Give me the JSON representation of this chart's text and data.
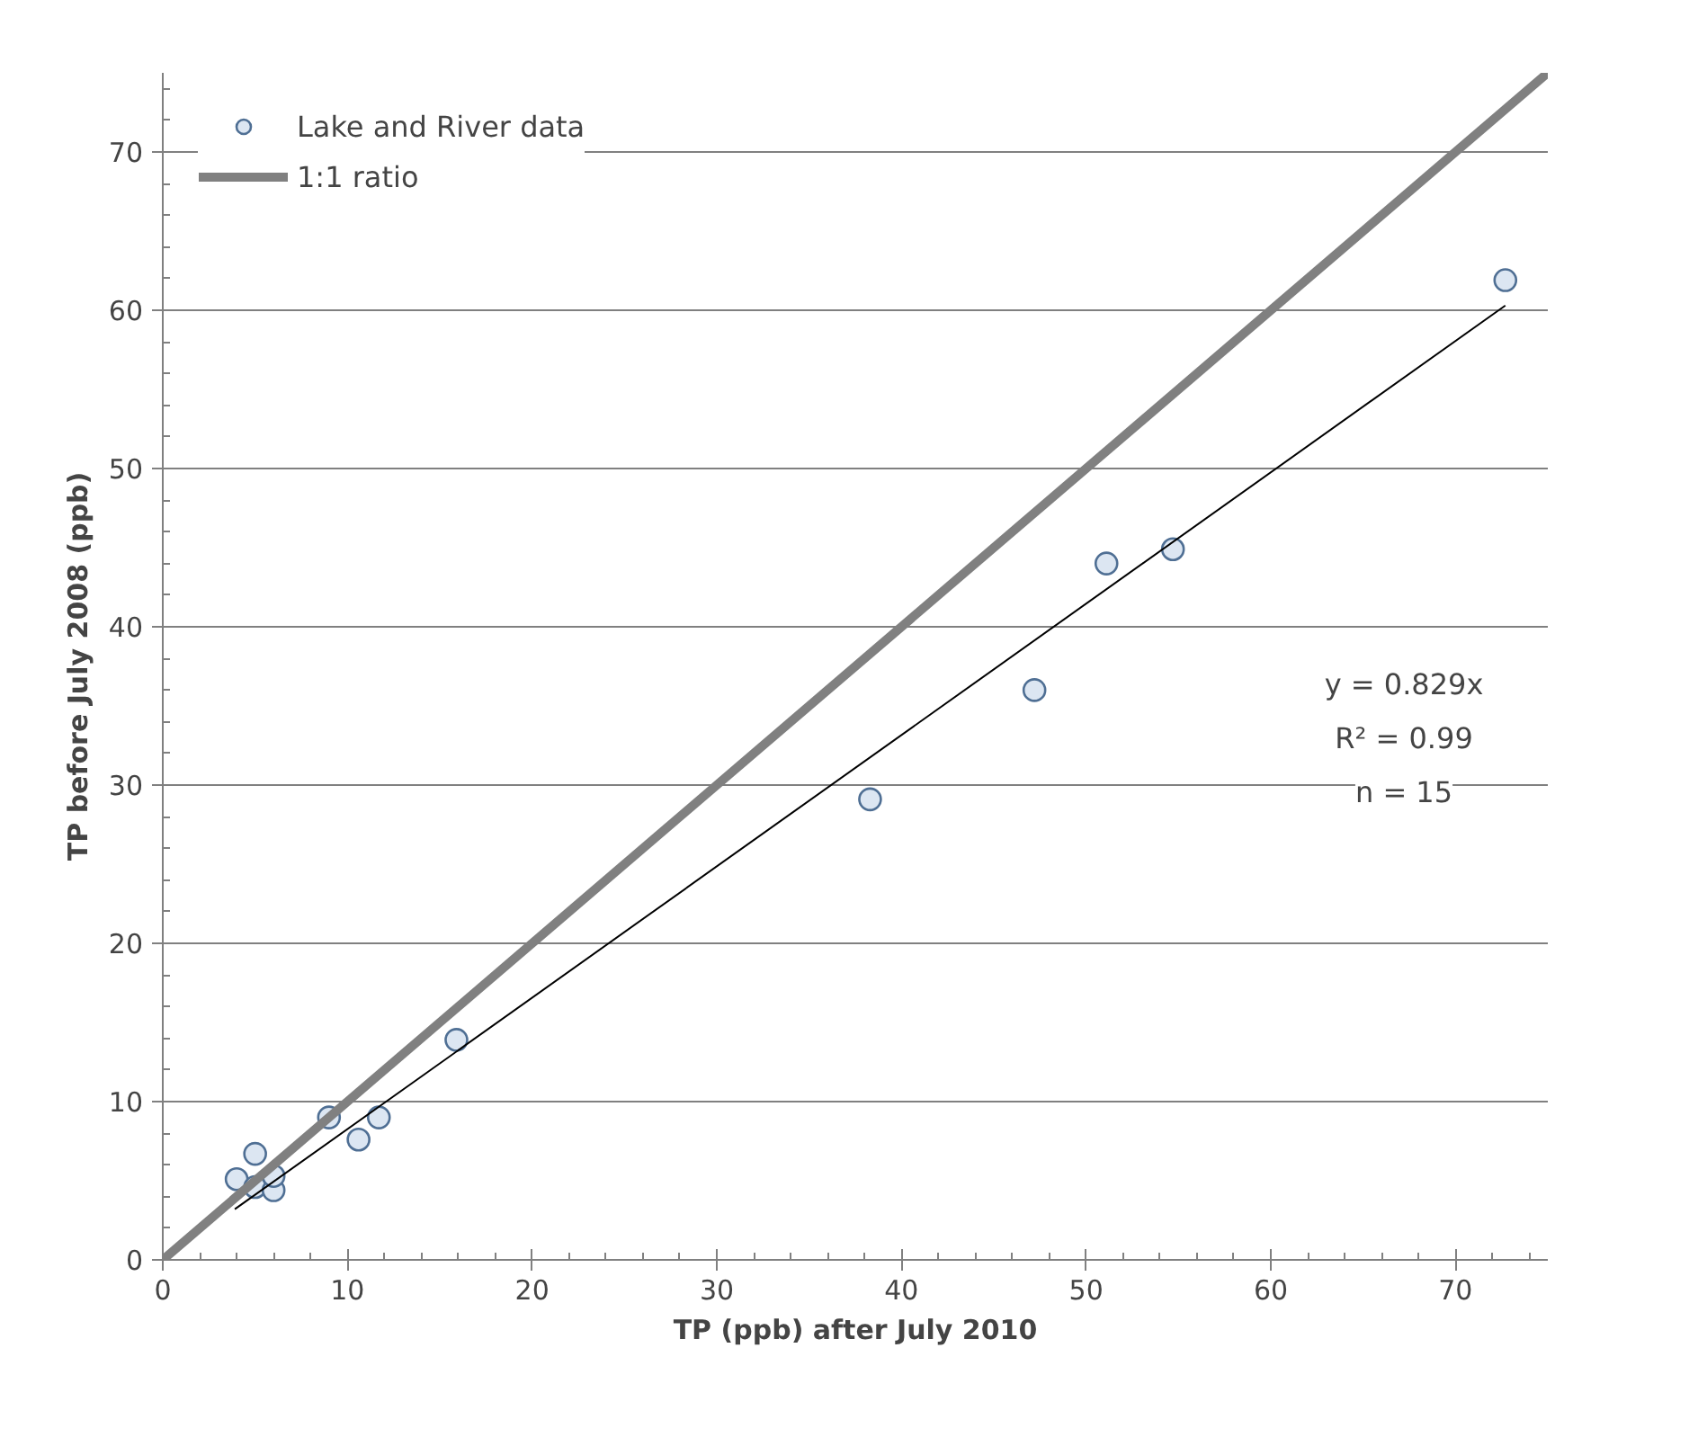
{
  "chart_data": {
    "type": "scatter",
    "xlabel": "TP (ppb) after July 2010",
    "ylabel": "TP before July 2008 (ppb)",
    "xlim": [
      0,
      75
    ],
    "ylim": [
      0,
      75
    ],
    "xticks": [
      0,
      10,
      20,
      30,
      40,
      50,
      60,
      70
    ],
    "yticks": [
      0,
      10,
      20,
      30,
      40,
      50,
      60,
      70
    ],
    "grid": "y",
    "legend": "top left",
    "series": [
      {
        "name": "Lake and River data",
        "marker": "circle",
        "color": "#dce6f2",
        "x": [
          4,
          5,
          5,
          6,
          6,
          9,
          10.6,
          11.7,
          15.9,
          38.3,
          47.2,
          51.1,
          54.7,
          72.7
        ],
        "values": [
          5.1,
          6.7,
          4.6,
          4.4,
          5.3,
          9,
          7.6,
          9,
          13.9,
          29.1,
          36,
          44,
          44.9,
          61.9
        ]
      },
      {
        "name": "1:1 ratio",
        "type": "line",
        "color": "#808080",
        "x": [
          0,
          75
        ],
        "values": [
          0,
          75
        ]
      },
      {
        "type": "line",
        "color": "#000000",
        "x": [
          3.9,
          72.7
        ],
        "values": [
          3.2,
          60.3
        ]
      }
    ],
    "annotations": [
      "y = 0.829x",
      "R² = 0.99",
      "n = 15"
    ]
  }
}
